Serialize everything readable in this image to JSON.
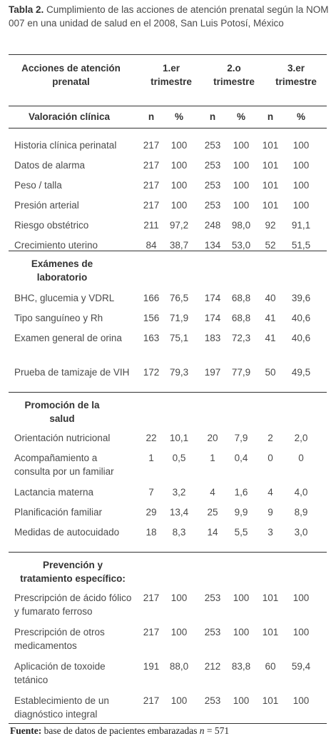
{
  "caption": {
    "label": "Tabla 2.",
    "text": "Cumplimiento de las acciones de atención prenatal según la NOM 007 en una unidad de salud en el 2008, San Luis Potosí, México"
  },
  "header": {
    "col0": "Acciones de atención prenatal",
    "col1": "1.er trimestre",
    "col2": "2.o trimestre",
    "col3": "3.er trimestre"
  },
  "subheader": {
    "n": "n",
    "pct": "%"
  },
  "sections": [
    {
      "title": "Valoración clínica",
      "rows": [
        {
          "label": "Historia clínica perinatal",
          "v": [
            "217",
            "100",
            "253",
            "100",
            "101",
            "100"
          ]
        },
        {
          "label": "Datos de alarma",
          "v": [
            "217",
            "100",
            "253",
            "100",
            "101",
            "100"
          ]
        },
        {
          "label": "Peso / talla",
          "v": [
            "217",
            "100",
            "253",
            "100",
            "101",
            "100"
          ]
        },
        {
          "label": "Presión arterial",
          "v": [
            "217",
            "100",
            "253",
            "100",
            "101",
            "100"
          ]
        },
        {
          "label": "Riesgo obstétrico",
          "v": [
            "211",
            "97,2",
            "248",
            "98,0",
            "92",
            "91,1"
          ]
        },
        {
          "label": "Crecimiento uterino",
          "v": [
            "84",
            "38,7",
            "134",
            "53,0",
            "52",
            "51,5"
          ]
        }
      ]
    },
    {
      "title": "Exámenes de laboratorio",
      "rows": [
        {
          "label": "BHC, glucemia y VDRL",
          "v": [
            "166",
            "76,5",
            "174",
            "68,8",
            "40",
            "39,6"
          ]
        },
        {
          "label": "Tipo sanguíneo y Rh",
          "v": [
            "156",
            "71,9",
            "174",
            "68,8",
            "41",
            "40,6"
          ]
        },
        {
          "label": "Examen general de orina",
          "v": [
            "163",
            "75,1",
            "183",
            "72,3",
            "41",
            "40,6"
          ]
        },
        {
          "label": "Prueba de tamizaje de VIH",
          "v": [
            "172",
            "79,3",
            "197",
            "77,9",
            "50",
            "49,5"
          ]
        }
      ]
    },
    {
      "title": "Promoción de la salud",
      "rows": [
        {
          "label": "Orientación nutricional",
          "v": [
            "22",
            "10,1",
            "20",
            "7,9",
            "2",
            "2,0"
          ]
        },
        {
          "label": "Acompañamiento a consulta por un familiar",
          "v": [
            "1",
            "0,5",
            "1",
            "0,4",
            "0",
            "0"
          ]
        },
        {
          "label": "Lactancia materna",
          "v": [
            "7",
            "3,2",
            "4",
            "1,6",
            "4",
            "4,0"
          ]
        },
        {
          "label": "Planificación familiar",
          "v": [
            "29",
            "13,4",
            "25",
            "9,9",
            "9",
            "8,9"
          ]
        },
        {
          "label": "Medidas de autocuidado",
          "v": [
            "18",
            "8,3",
            "14",
            "5,5",
            "3",
            "3,0"
          ]
        }
      ]
    },
    {
      "title": "Prevención y tratamiento específico:",
      "rows": [
        {
          "label": "Prescripción de ácido fólico y fumarato ferroso",
          "v": [
            "217",
            "100",
            "253",
            "100",
            "101",
            "100"
          ]
        },
        {
          "label": "Prescripción de otros medicamentos",
          "v": [
            "217",
            "100",
            "253",
            "100",
            "101",
            "100"
          ]
        },
        {
          "label": "Aplicación de toxoide tetánico",
          "v": [
            "191",
            "88,0",
            "212",
            "83,8",
            "60",
            "59,4"
          ]
        },
        {
          "label": "Establecimiento de un diagnóstico integral",
          "v": [
            "217",
            "100",
            "253",
            "100",
            "101",
            "100"
          ]
        }
      ]
    }
  ],
  "footer": {
    "label": "Fuente:",
    "text": "base de datos de pacientes embarazadas",
    "n_label": "n",
    "n_value": "= 571"
  }
}
